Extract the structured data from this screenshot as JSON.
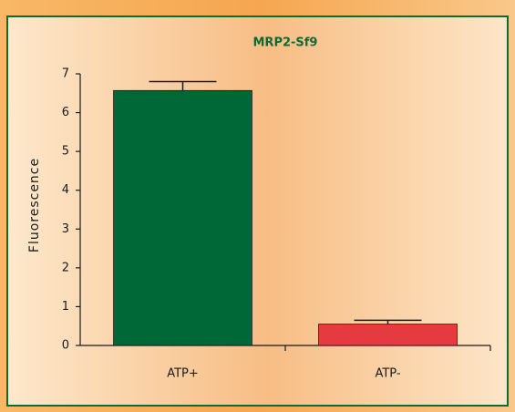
{
  "chart_data": {
    "type": "bar",
    "title": "MRP2-Sf9",
    "ylabel": "Fluorescence",
    "categories": [
      "ATP+",
      "ATP-"
    ],
    "values": [
      6.57,
      0.55
    ],
    "errors": [
      0.23,
      0.1
    ],
    "colors": [
      "#006837",
      "#e53a3f"
    ],
    "ylim": [
      0,
      7
    ],
    "yticks": [
      0,
      1,
      2,
      3,
      4,
      5,
      6,
      7
    ]
  }
}
